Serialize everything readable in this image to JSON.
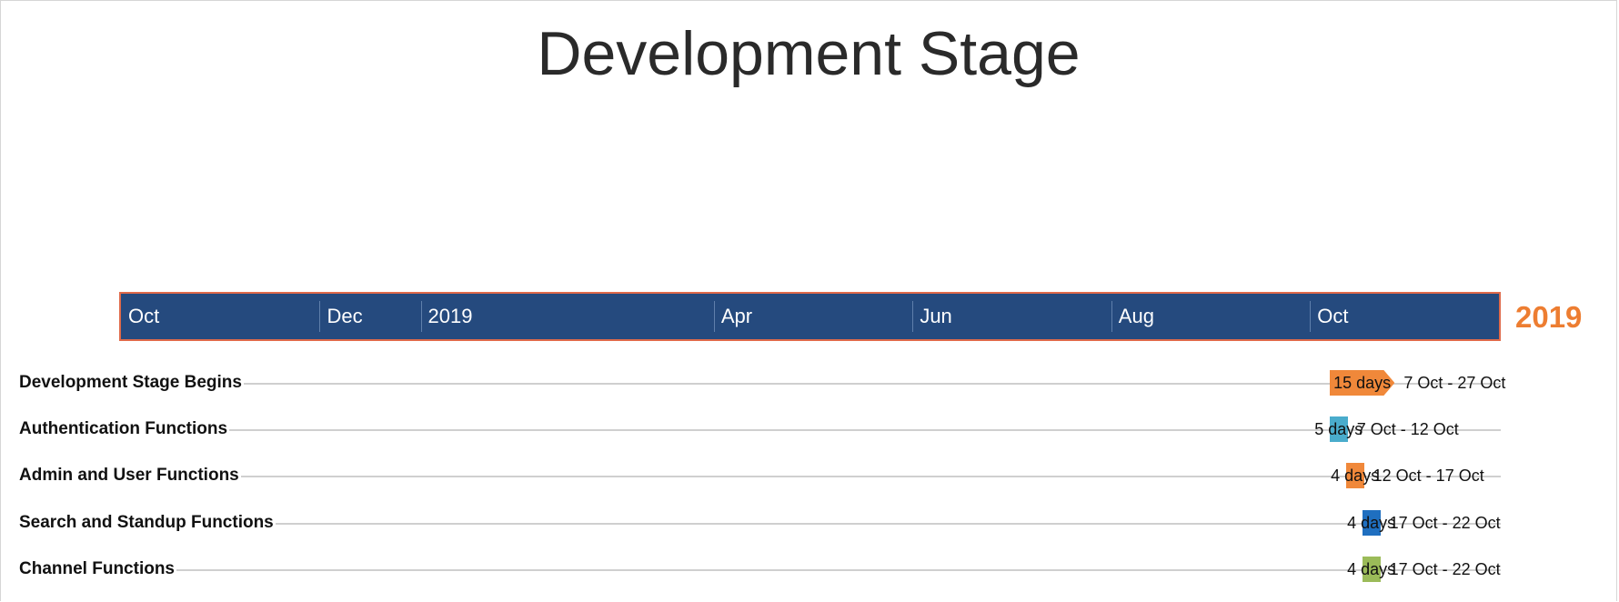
{
  "chart_data": {
    "type": "gantt",
    "title": "Development Stage",
    "timescale": {
      "ticks": [
        "Oct",
        "Dec",
        "2019",
        "Apr",
        "Jun",
        "Aug",
        "Oct"
      ],
      "tick_dates": [
        "2018-10-01",
        "2018-12-01",
        "2019-01-01",
        "2019-04-01",
        "2019-06-01",
        "2019-08-01",
        "2019-10-01"
      ],
      "range": [
        "2018-10-01",
        "2019-11-28"
      ],
      "year_label": "2019",
      "bar_color": "#254a7e",
      "border_color": "#e06a4a",
      "year_color": "#ed7d31"
    },
    "tasks": [
      {
        "name": "Development Stage Begins",
        "start": "2019-10-07",
        "end": "2019-10-27",
        "duration": "15 days",
        "dates": "7 Oct - 27 Oct",
        "color": "#f0883a",
        "shape": "arrow"
      },
      {
        "name": "Authentication Functions",
        "start": "2019-10-07",
        "end": "2019-10-12",
        "duration": "5 days",
        "dates": "7 Oct - 12 Oct",
        "color": "#4aaccc",
        "shape": "bar"
      },
      {
        "name": "Admin and User Functions",
        "start": "2019-10-12",
        "end": "2019-10-17",
        "duration": "4 days",
        "dates": "12 Oct - 17 Oct",
        "color": "#f0883a",
        "shape": "bar"
      },
      {
        "name": "Search and Standup Functions",
        "start": "2019-10-17",
        "end": "2019-10-22",
        "duration": "4 days",
        "dates": "17 Oct - 22 Oct",
        "color": "#1f6fc0",
        "shape": "bar"
      },
      {
        "name": "Channel Functions",
        "start": "2019-10-17",
        "end": "2019-10-22",
        "duration": "4 days",
        "dates": "17 Oct - 22 Oct",
        "color": "#9bbb59",
        "shape": "bar"
      }
    ]
  }
}
